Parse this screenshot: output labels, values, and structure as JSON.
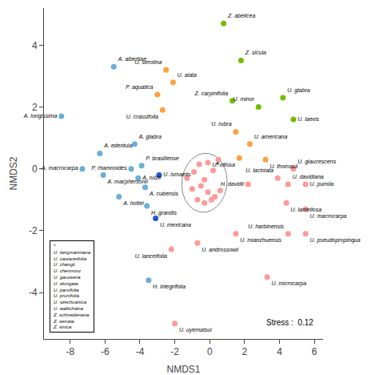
{
  "chart_data": {
    "type": "scatter",
    "xlabel": "NMDS1",
    "ylabel": "NMDS2",
    "xlim": [
      -9.5,
      6.5
    ],
    "ylim": [
      -5.5,
      5.2
    ],
    "xticks": [
      -8,
      -6,
      -4,
      -2,
      0,
      2,
      4,
      6
    ],
    "yticks": [
      -4,
      -2,
      0,
      2,
      4
    ],
    "grid": false,
    "background_color": "#ffffff",
    "points": [
      {
        "x": -8.5,
        "y": 1.7,
        "color": "#6BAED6",
        "label": "A. longissima"
      },
      {
        "x": -7.3,
        "y": 0.0,
        "color": "#6BAED6",
        "label": "A. macrocarpa"
      },
      {
        "x": -6.3,
        "y": 0.5,
        "color": "#6BAED6",
        "label": "A. edentula"
      },
      {
        "x": -6.1,
        "y": -0.2,
        "color": "#6BAED6",
        "label": "A. macphersonii"
      },
      {
        "x": -5.5,
        "y": 3.3,
        "color": "#6BAED6",
        "label": "A. albertiae"
      },
      {
        "x": -5.2,
        "y": -0.9,
        "color": "#6BAED6",
        "label": "A. hottei"
      },
      {
        "x": -4.3,
        "y": 0.8,
        "color": "#6BAED6",
        "label": "A. glabra"
      },
      {
        "x": -3.9,
        "y": 0.1,
        "color": "#6BAED6",
        "label": "P. brasiliense"
      },
      {
        "x": -4.5,
        "y": 0.0,
        "color": "#6BAED6",
        "label": "P. rhamnoides"
      },
      {
        "x": -4.1,
        "y": -0.3,
        "color": "#6BAED6",
        "label": "A. rulzii"
      },
      {
        "x": -3.7,
        "y": -0.6,
        "color": "#6BAED6",
        "label": "A. cubensis"
      },
      {
        "x": -3.6,
        "y": -1.2,
        "color": "#6BAED6",
        "label": "H. grandis"
      },
      {
        "x": -2.9,
        "y": -0.2,
        "color": "#2255CC",
        "label": "U. ismaelis"
      },
      {
        "x": -3.1,
        "y": -1.6,
        "color": "#2255CC",
        "label": "U. mexicana"
      },
      {
        "x": -3.5,
        "y": -3.6,
        "color": "#6BAED6",
        "label": "H. integrifolia"
      },
      {
        "x": -2.5,
        "y": 3.2,
        "color": "#FFA040",
        "label": "U. serotina"
      },
      {
        "x": -2.1,
        "y": 2.8,
        "color": "#FFA040",
        "label": "U. alata"
      },
      {
        "x": -3.0,
        "y": 2.4,
        "color": "#FFA040",
        "label": "P. aquatica"
      },
      {
        "x": -2.7,
        "y": 1.9,
        "color": "#FFA040",
        "label": "U. crassifolia"
      },
      {
        "x": -2.2,
        "y": -2.6,
        "color": "#FF9999",
        "label": "U. lanceifolia"
      },
      {
        "x": -0.7,
        "y": -2.4,
        "color": "#FF9999",
        "label": "U. androssowii"
      },
      {
        "x": -2.0,
        "y": -5.0,
        "color": "#FF9999",
        "label": "U. uyematsui"
      },
      {
        "x": 0.8,
        "y": 4.7,
        "color": "#77BB00",
        "label": "Z. abelicea"
      },
      {
        "x": 1.8,
        "y": 3.5,
        "color": "#77BB00",
        "label": "Z. sicula"
      },
      {
        "x": 1.3,
        "y": 2.2,
        "color": "#77BB00",
        "label": "Z. carpinifolia"
      },
      {
        "x": 2.8,
        "y": 2.0,
        "color": "#77BB00",
        "label": "U. minor"
      },
      {
        "x": 4.2,
        "y": 2.3,
        "color": "#77BB00",
        "label": "U. glabra"
      },
      {
        "x": 4.8,
        "y": 1.6,
        "color": "#77BB00",
        "label": "U. laevis"
      },
      {
        "x": 1.5,
        "y": 1.2,
        "color": "#FFA040",
        "label": "U. rubra"
      },
      {
        "x": 2.3,
        "y": 0.8,
        "color": "#FFA040",
        "label": "U. americana"
      },
      {
        "x": 1.7,
        "y": 0.35,
        "color": "#FFA040",
        "label": "U. villosa"
      },
      {
        "x": 3.2,
        "y": 0.3,
        "color": "#FFA040",
        "label": "U. thomasii"
      },
      {
        "x": 4.8,
        "y": 0.0,
        "color": "#FF9999",
        "label": "U. glaucescens"
      },
      {
        "x": 3.9,
        "y": -0.3,
        "color": "#FF9999",
        "label": "U. laciniata"
      },
      {
        "x": 4.5,
        "y": -0.5,
        "color": "#FF9999",
        "label": "U. davidiana"
      },
      {
        "x": 5.5,
        "y": -0.5,
        "color": "#FF9999",
        "label": "U. pumila"
      },
      {
        "x": 2.2,
        "y": -0.5,
        "color": "#FF9999",
        "label": "H. davidii"
      },
      {
        "x": 4.4,
        "y": -1.1,
        "color": "#FF9999",
        "label": "U. lamellosa"
      },
      {
        "x": 5.5,
        "y": -1.3,
        "color": "#FF9999",
        "label": "U. macrocarpa"
      },
      {
        "x": 1.5,
        "y": -2.1,
        "color": "#FF9999",
        "label": "U. mianzhuensis"
      },
      {
        "x": 4.5,
        "y": -2.1,
        "color": "#FF9999",
        "label": "U. harbinensis"
      },
      {
        "x": 5.5,
        "y": -2.1,
        "color": "#FF9999",
        "label": "U. pseudopropinqua"
      },
      {
        "x": 3.3,
        "y": -3.5,
        "color": "#FF9999",
        "label": "U. microcarpa"
      }
    ],
    "cluster_points": {
      "color": "#FF9999",
      "x": [
        -1.3,
        -0.9,
        -0.6,
        -0.3,
        -0.1,
        0.2,
        0.5,
        -1.0,
        -0.5,
        -0.1,
        0.3,
        0.6,
        -0.7,
        -0.3,
        0.1
      ],
      "y": [
        -0.3,
        -0.1,
        0.15,
        -0.35,
        0.2,
        -0.05,
        0.3,
        -0.65,
        -0.55,
        -0.75,
        -0.9,
        -0.7,
        -1.0,
        -1.1,
        -1.0
      ]
    },
    "ellipse": {
      "center": [
        -0.3,
        -0.45
      ],
      "width": 2.6,
      "height": 1.9,
      "angle": 5,
      "color": "#888888"
    },
    "annotations": [
      {
        "text": "*",
        "x": 0.45,
        "y": 0.12
      }
    ],
    "stress_text": "Stress :  0.12",
    "key_box": [
      "*",
      "U. bergmanniana",
      "U. castaneifolia",
      "U. changii",
      "U. chenmour",
      "U. gausseria",
      "U. elongata",
      "U. parvifolia",
      "U. prunifolia",
      "U. szechuanica",
      "U. wallichiana",
      "Z. schneideriana",
      "Z. serrata",
      "Z. sinica"
    ]
  }
}
